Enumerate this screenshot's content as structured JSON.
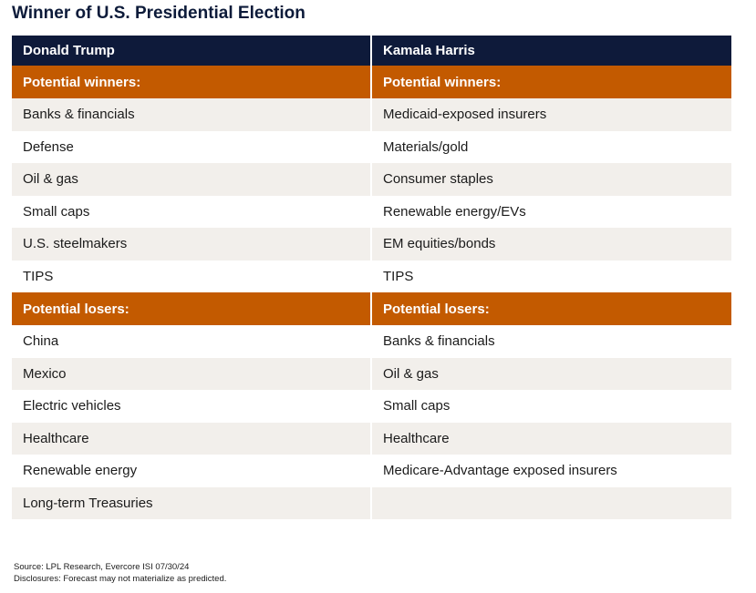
{
  "title": "Winner of U.S. Presidential Election",
  "columns": [
    "Donald Trump",
    "Kamala Harris"
  ],
  "sections": [
    {
      "label": [
        "Potential winners:",
        "Potential winners:"
      ],
      "rows": [
        [
          "Banks & financials",
          "Medicaid-exposed insurers"
        ],
        [
          "Defense",
          "Materials/gold"
        ],
        [
          "Oil & gas",
          "Consumer staples"
        ],
        [
          "Small caps",
          "Renewable energy/EVs"
        ],
        [
          "U.S. steelmakers",
          "EM equities/bonds"
        ],
        [
          "TIPS",
          "TIPS"
        ]
      ]
    },
    {
      "label": [
        "Potential losers:",
        "Potential losers:"
      ],
      "rows": [
        [
          "China",
          "Banks & financials"
        ],
        [
          "Mexico",
          "Oil & gas"
        ],
        [
          "Electric vehicles",
          "Small caps"
        ],
        [
          "Healthcare",
          "Healthcare"
        ],
        [
          "Renewable energy",
          "Medicare-Advantage exposed insurers"
        ],
        [
          "Long-term Treasuries",
          ""
        ]
      ]
    }
  ],
  "footer": {
    "source": "Source: LPL Research, Evercore ISI 07/30/24",
    "disclosure": "Disclosures: Forecast may not materialize as predicted."
  }
}
